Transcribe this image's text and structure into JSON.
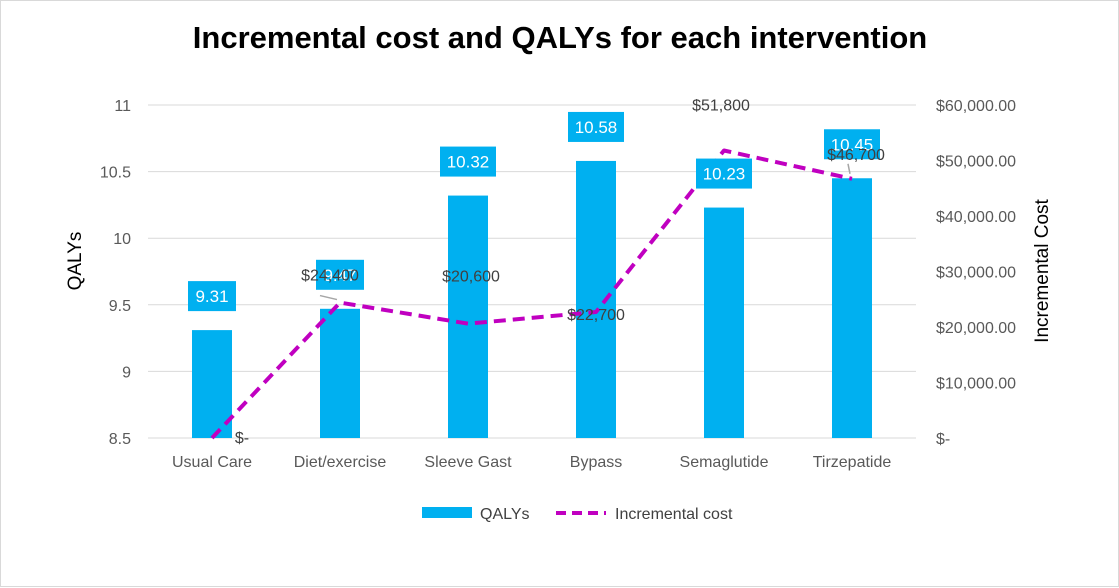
{
  "chart_data": {
    "type": "bar",
    "title": "Incremental cost and QALYs for each intervention",
    "categories": [
      "Usual Care",
      "Diet/exercise",
      "Sleeve Gast",
      "Bypass",
      "Semaglutide",
      "Tirzepatide"
    ],
    "series": [
      {
        "name": "QALYs",
        "type": "bar",
        "axis": "left",
        "color": "#00B0F0",
        "values": [
          9.31,
          9.47,
          10.32,
          10.58,
          10.23,
          10.45
        ],
        "labels": [
          "9.31",
          "9.47",
          "10.32",
          "10.58",
          "10.23",
          "10.45"
        ]
      },
      {
        "name": "Incremental cost",
        "type": "line",
        "style": "dashed",
        "axis": "right",
        "color": "#C000C0",
        "values": [
          0,
          24400,
          20600,
          22700,
          51800,
          46700
        ],
        "labels": [
          "$-",
          "$24,400",
          "$20,600",
          "$22,700",
          "$51,800",
          "$46,700"
        ]
      }
    ],
    "y_left": {
      "label": "QALYs",
      "ylim": [
        8.5,
        11
      ],
      "ticks": [
        8.5,
        9,
        9.5,
        10,
        10.5,
        11
      ],
      "tick_labels": [
        "8.5",
        "9",
        "9.5",
        "10",
        "10.5",
        "11"
      ]
    },
    "y_right": {
      "label": "Incremental Cost",
      "ylim": [
        0,
        60000
      ],
      "ticks": [
        0,
        10000,
        20000,
        30000,
        40000,
        50000,
        60000
      ],
      "tick_labels": [
        "$-",
        "$10,000.00",
        "$20,000.00",
        "$30,000.00",
        "$40,000.00",
        "$50,000.00",
        "$60,000.00"
      ]
    },
    "grid": true,
    "legend_position": "bottom",
    "gridline_color": "#d9d9d9"
  }
}
